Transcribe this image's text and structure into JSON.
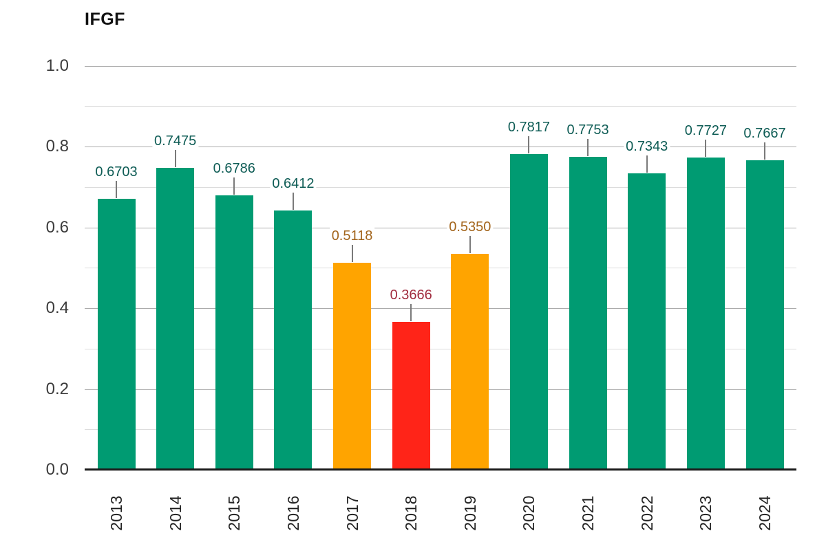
{
  "title": "IFGF",
  "chart_data": {
    "type": "bar",
    "title": "IFGF",
    "categories": [
      "2013",
      "2014",
      "2015",
      "2016",
      "2017",
      "2018",
      "2019",
      "2020",
      "2021",
      "2022",
      "2023",
      "2024"
    ],
    "values": [
      0.6703,
      0.7475,
      0.6786,
      0.6412,
      0.5118,
      0.3666,
      0.535,
      0.7817,
      0.7753,
      0.7343,
      0.7727,
      0.7667
    ],
    "value_labels": [
      "0.6703",
      "0.7475",
      "0.6786",
      "0.6412",
      "0.5118",
      "0.3666",
      "0.5350",
      "0.7817",
      "0.7753",
      "0.7343",
      "0.7727",
      "0.7667"
    ],
    "bar_states": [
      "good",
      "good",
      "good",
      "good",
      "warning",
      "bad",
      "warning",
      "good",
      "good",
      "good",
      "good",
      "good"
    ],
    "xlabel": "",
    "ylabel": "",
    "ylim": [
      0,
      1
    ],
    "yticks": [
      0.0,
      0.2,
      0.4,
      0.6,
      0.8,
      1.0
    ],
    "ytick_labels": [
      "0.0",
      "0.2",
      "0.4",
      "0.6",
      "0.8",
      "1.0"
    ],
    "minor_grid_step": 0.1,
    "grid": "on",
    "legend": "none",
    "x_labels_rotation_deg": -90
  },
  "colors": {
    "good_bar": "#009B72",
    "warning_bar": "#FFA400",
    "bad_bar": "#FF2418",
    "good_label": "#0E5C55",
    "warning_label": "#A3651C",
    "bad_label": "#A12C3E",
    "axis_line": "#1A1A1A",
    "major_gridline": "#ABABAB",
    "minor_gridline": "#DCDCDC",
    "leader_line": "#7A7A7A",
    "y_tick_label": "#3D3D3D",
    "x_tick_label": "#242424",
    "title": "#111111",
    "background": "#FFFFFF"
  }
}
